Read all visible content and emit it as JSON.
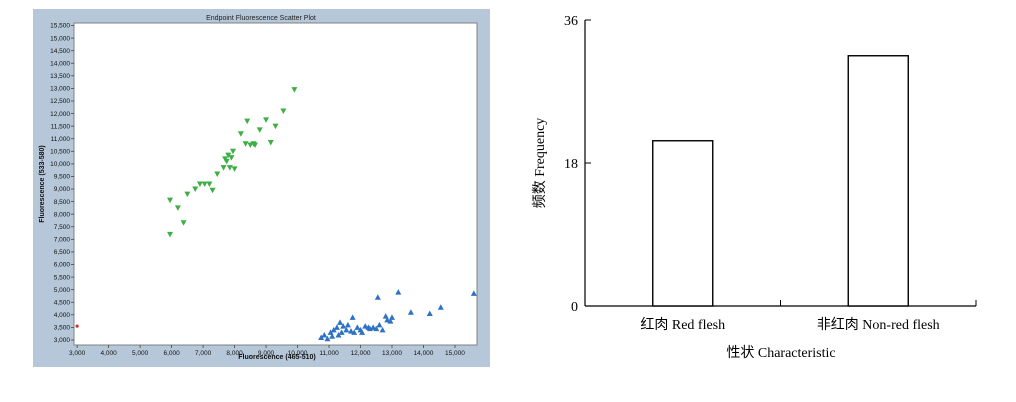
{
  "chart_data": [
    {
      "type": "scatter",
      "title": "Endpoint Fluorescence Scatter Plot",
      "xlabel": "Fluorescence (465-510)",
      "ylabel": "Fluorescence (533-580)",
      "xlim": [
        2900,
        15700
      ],
      "ylim": [
        2800,
        15600
      ],
      "xticks": [
        3000,
        4000,
        5000,
        6000,
        7000,
        8000,
        9000,
        10000,
        11000,
        12000,
        13000,
        14000,
        15000
      ],
      "xtick_labels": [
        "3,000",
        "4,000",
        "5,000",
        "6,000",
        "7,000",
        "8,000",
        "9,000",
        "10,000",
        "11,000",
        "12,000",
        "13,000",
        "14,000",
        "15,000"
      ],
      "yticks": [
        3000,
        3500,
        4000,
        4500,
        5000,
        5500,
        6000,
        6500,
        7000,
        7500,
        8000,
        8500,
        9000,
        9500,
        10000,
        10500,
        11000,
        11500,
        12000,
        12500,
        13000,
        13500,
        14000,
        14500,
        15000,
        15500
      ],
      "ytick_labels": [
        "3,000",
        "3,500",
        "4,000",
        "4,500",
        "5,000",
        "5,500",
        "6,000",
        "6,500",
        "7,000",
        "7,500",
        "8,000",
        "8,500",
        "9,000",
        "9,500",
        "10,000",
        "10,500",
        "11,000",
        "11,500",
        "12,000",
        "12,500",
        "13,000",
        "13,500",
        "14,000",
        "14,500",
        "15,000",
        "15,500"
      ],
      "series": [
        {
          "marker": "triangle-down",
          "color": "#3cb043",
          "points": [
            [
              5950,
              8560
            ],
            [
              6200,
              8250
            ],
            [
              5950,
              7200
            ],
            [
              6380,
              7660
            ],
            [
              6500,
              8800
            ],
            [
              6750,
              9000
            ],
            [
              6900,
              9200
            ],
            [
              7050,
              9200
            ],
            [
              7200,
              9200
            ],
            [
              7300,
              8950
            ],
            [
              7450,
              9600
            ],
            [
              7650,
              9850
            ],
            [
              7750,
              10100
            ],
            [
              7800,
              10350
            ],
            [
              7900,
              10250
            ],
            [
              7950,
              10500
            ],
            [
              7700,
              10200
            ],
            [
              7850,
              9850
            ],
            [
              8000,
              9800
            ],
            [
              8200,
              11200
            ],
            [
              8350,
              10800
            ],
            [
              8400,
              11700
            ],
            [
              8500,
              10750
            ],
            [
              8600,
              10800
            ],
            [
              8650,
              10750
            ],
            [
              8800,
              11350
            ],
            [
              9000,
              11750
            ],
            [
              9150,
              10850
            ],
            [
              9300,
              11500
            ],
            [
              9550,
              12100
            ],
            [
              9900,
              12950
            ]
          ]
        },
        {
          "marker": "triangle-up",
          "color": "#2e72c4",
          "points": [
            [
              10750,
              3100
            ],
            [
              10850,
              3200
            ],
            [
              10950,
              3050
            ],
            [
              11050,
              3300
            ],
            [
              11100,
              3150
            ],
            [
              11150,
              3400
            ],
            [
              11250,
              3500
            ],
            [
              11300,
              3200
            ],
            [
              11350,
              3700
            ],
            [
              11400,
              3300
            ],
            [
              11450,
              3550
            ],
            [
              11550,
              3400
            ],
            [
              11600,
              3600
            ],
            [
              11700,
              3350
            ],
            [
              11750,
              3900
            ],
            [
              11800,
              3300
            ],
            [
              11900,
              3500
            ],
            [
              12000,
              3400
            ],
            [
              12050,
              3300
            ],
            [
              12150,
              3550
            ],
            [
              12250,
              3500
            ],
            [
              12300,
              3450
            ],
            [
              12400,
              3500
            ],
            [
              12500,
              3450
            ],
            [
              12600,
              3600
            ],
            [
              12700,
              3400
            ],
            [
              12800,
              3950
            ],
            [
              12850,
              3800
            ],
            [
              12950,
              3750
            ],
            [
              13000,
              3900
            ],
            [
              12550,
              4700
            ],
            [
              13200,
              4900
            ],
            [
              13600,
              4100
            ],
            [
              14200,
              4050
            ],
            [
              14550,
              4300
            ],
            [
              15600,
              4850
            ]
          ]
        },
        {
          "marker": "circle",
          "color": "#c0392b",
          "points": [
            [
              3000,
              3550
            ]
          ]
        }
      ]
    },
    {
      "type": "bar",
      "categories": [
        "红肉 Red flesh",
        "非红肉 Non-red flesh"
      ],
      "values": [
        20.8,
        31.5
      ],
      "xlabel": "性状 Characteristic",
      "ylabel": "频数 Frequency",
      "ylim": [
        0,
        36
      ],
      "yticks": [
        0,
        18,
        36
      ],
      "ytick_labels": [
        "0",
        "18",
        "36"
      ],
      "bar_fill": "#ffffff",
      "bar_stroke": "#000000"
    }
  ]
}
